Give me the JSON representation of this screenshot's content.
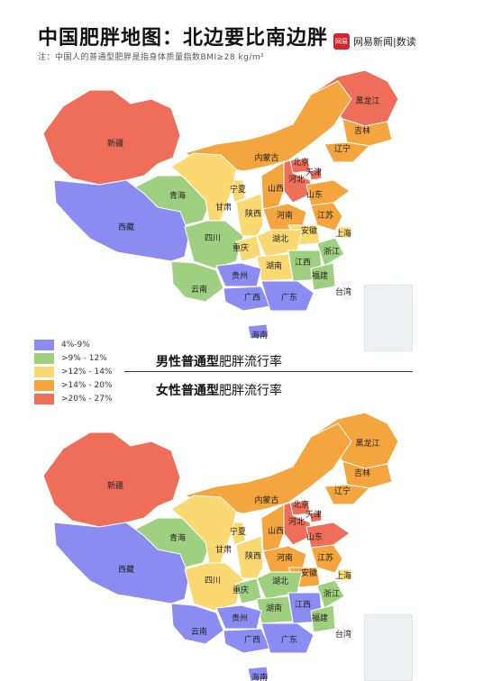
{
  "header": {
    "title": "中国肥胖地图：北边要比南边胖",
    "note": "注：中国人的普通型肥胖是指身体质量指数BMI≥28 kg/m²",
    "brand_logo": "网易",
    "brand": "网易新闻|数读"
  },
  "colors": {
    "blue": "#8a8cf2",
    "green": "#9fd07f",
    "yellow": "#fbd972",
    "orange": "#f4a53e",
    "red": "#ef6e5a",
    "taiwan": "#f6f6f6"
  },
  "legend": [
    {
      "label": "4%-9%",
      "color": "#8a8cf2"
    },
    {
      "label": ">9% - 12%",
      "color": "#9fd07f"
    },
    {
      "label": ">12% - 14%",
      "color": "#fbd972"
    },
    {
      "label": ">14% - 20%",
      "color": "#f4a53e"
    },
    {
      "label": ">20% - 27%",
      "color": "#ef6e5a"
    }
  ],
  "captions": {
    "male_bold": "男性普通型",
    "male_rest": "肥胖流行率",
    "female_bold": "女性普通型",
    "female_rest": "肥胖流行率"
  },
  "provinces": [
    "黑龙江",
    "吉林",
    "辽宁",
    "内蒙古",
    "北京",
    "天津",
    "河北",
    "山西",
    "山东",
    "新疆",
    "青海",
    "宁夏",
    "甘肃",
    "陕西",
    "河南",
    "江苏",
    "安徽",
    "上海",
    "西藏",
    "四川",
    "重庆",
    "湖北",
    "浙江",
    "江西",
    "湖南",
    "福建",
    "贵州",
    "云南",
    "广西",
    "广东",
    "台湾",
    "海南"
  ],
  "male_map": {
    "黑龙江": "red",
    "吉林": "orange",
    "辽宁": "orange",
    "内蒙古": "orange",
    "北京": "red",
    "天津": "red",
    "河北": "red",
    "山西": "orange",
    "山东": "orange",
    "新疆": "red",
    "青海": "green",
    "宁夏": "yellow",
    "甘肃": "yellow",
    "陕西": "yellow",
    "河南": "orange",
    "江苏": "orange",
    "安徽": "yellow",
    "上海": "yellow",
    "西藏": "blue",
    "四川": "green",
    "重庆": "yellow",
    "湖北": "yellow",
    "浙江": "green",
    "江西": "green",
    "湖南": "yellow",
    "福建": "green",
    "贵州": "blue",
    "云南": "green",
    "广西": "blue",
    "广东": "blue",
    "台湾": "taiwan",
    "海南": "blue"
  },
  "female_map": {
    "黑龙江": "orange",
    "吉林": "orange",
    "辽宁": "orange",
    "内蒙古": "orange",
    "北京": "red",
    "天津": "red",
    "河北": "red",
    "山西": "orange",
    "山东": "red",
    "新疆": "red",
    "青海": "green",
    "宁夏": "yellow",
    "甘肃": "yellow",
    "陕西": "yellow",
    "河南": "orange",
    "江苏": "orange",
    "安徽": "orange",
    "上海": "yellow",
    "西藏": "blue",
    "四川": "yellow",
    "重庆": "green",
    "湖北": "green",
    "浙江": "green",
    "江西": "blue",
    "湖南": "green",
    "福建": "green",
    "贵州": "blue",
    "云南": "blue",
    "广西": "blue",
    "广东": "blue",
    "台湾": "taiwan",
    "海南": "blue"
  }
}
